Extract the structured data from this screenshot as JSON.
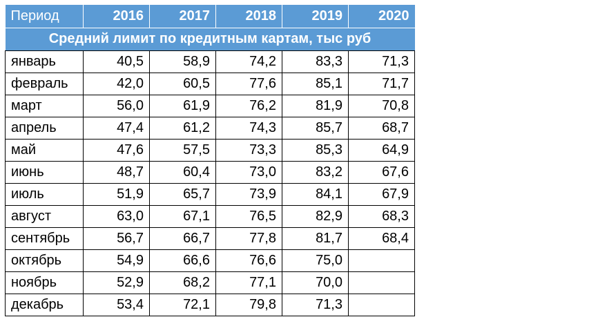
{
  "chart_data": {
    "type": "table",
    "title": "Средний лимит по кредитным картам, тыс руб",
    "row_header_label": "Период",
    "columns": [
      "2016",
      "2017",
      "2018",
      "2019",
      "2020"
    ],
    "rows": [
      {
        "label": "январь",
        "values": [
          "40,5",
          "58,9",
          "74,2",
          "83,3",
          "71,3"
        ]
      },
      {
        "label": "февраль",
        "values": [
          "42,0",
          "60,5",
          "77,6",
          "85,1",
          "71,7"
        ]
      },
      {
        "label": "март",
        "values": [
          "56,0",
          "61,9",
          "76,2",
          "81,9",
          "70,8"
        ]
      },
      {
        "label": "апрель",
        "values": [
          "47,4",
          "61,2",
          "74,3",
          "85,7",
          "68,7"
        ]
      },
      {
        "label": "май",
        "values": [
          "47,6",
          "57,5",
          "73,3",
          "85,3",
          "64,9"
        ]
      },
      {
        "label": "июнь",
        "values": [
          "48,7",
          "60,4",
          "73,0",
          "83,2",
          "67,6"
        ]
      },
      {
        "label": "июль",
        "values": [
          "51,9",
          "65,7",
          "73,9",
          "84,1",
          "67,9"
        ]
      },
      {
        "label": "август",
        "values": [
          "63,0",
          "67,1",
          "76,5",
          "82,9",
          "68,3"
        ]
      },
      {
        "label": "сентябрь",
        "values": [
          "56,7",
          "66,7",
          "77,8",
          "81,7",
          "68,4"
        ]
      },
      {
        "label": "октябрь",
        "values": [
          "54,9",
          "66,6",
          "76,6",
          "75,0",
          ""
        ]
      },
      {
        "label": "ноябрь",
        "values": [
          "52,9",
          "68,2",
          "77,1",
          "70,0",
          ""
        ]
      },
      {
        "label": "декабрь",
        "values": [
          "53,4",
          "72,1",
          "79,8",
          "71,3",
          ""
        ]
      }
    ]
  },
  "colors": {
    "header_background": "#5b9bd5",
    "header_text": "#ffffff",
    "grid_line": "#000000"
  }
}
